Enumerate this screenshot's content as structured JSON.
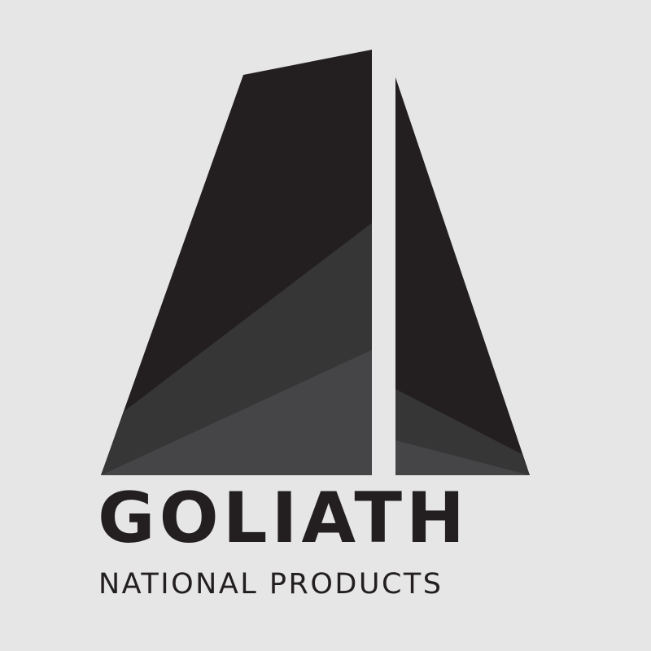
{
  "brand": {
    "name": "GOLIATH",
    "tagline": "NATIONAL PRODUCTS"
  },
  "colors": {
    "background": "#e6e6e6",
    "text": "#231f20",
    "shade_dark": "#231f20",
    "shade_mid": "#363637",
    "shade_light": "#454547"
  },
  "icons": {
    "logo_mark": "monolith-logo-icon"
  }
}
